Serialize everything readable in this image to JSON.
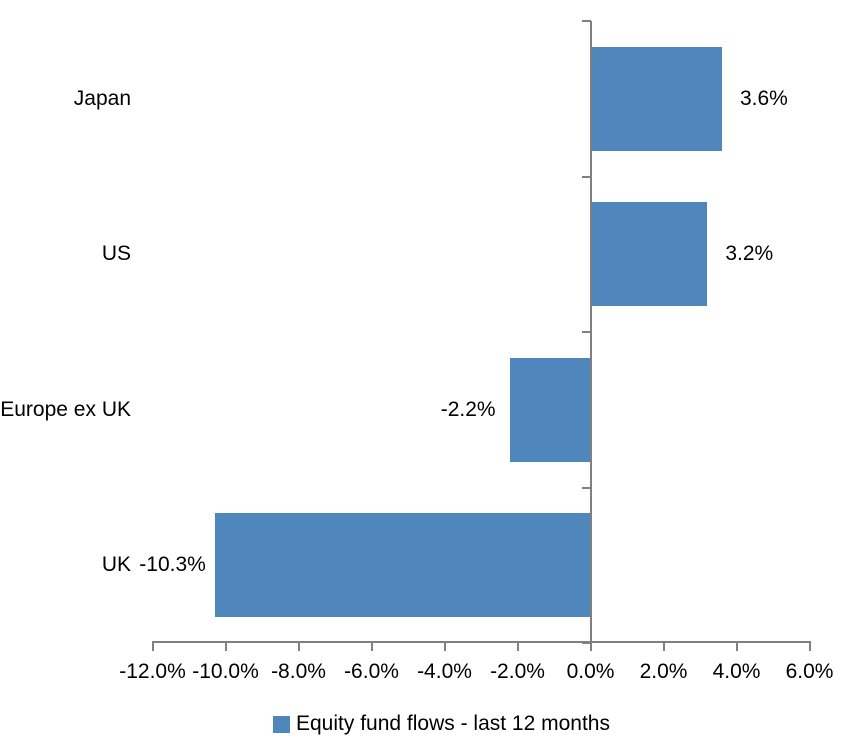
{
  "chart_data": {
    "type": "bar",
    "orientation": "horizontal",
    "title": "",
    "categories": [
      "Japan",
      "US",
      "Europe ex UK",
      "UK"
    ],
    "values": [
      3.6,
      3.2,
      -2.2,
      -10.3
    ],
    "data_labels": [
      "3.6%",
      "3.2%",
      "-2.2%",
      "-10.3%"
    ],
    "series_name": "Equity fund flows - last 12 months",
    "xlabel": "",
    "ylabel": "",
    "xlim": [
      -12,
      6
    ],
    "x_ticks": [
      -12,
      -10,
      -8,
      -6,
      -4,
      -2,
      0,
      2,
      4,
      6
    ],
    "x_tick_labels": [
      "-12.0%",
      "-10.0%",
      "-8.0%",
      "-6.0%",
      "-4.0%",
      "-2.0%",
      "0.0%",
      "2.0%",
      "4.0%",
      "6.0%"
    ],
    "grid": false,
    "legend_position": "bottom",
    "bar_color": "#4F86BB",
    "axis_color": "#808080",
    "text_color": "#000000",
    "background_color": "#FFFFFF"
  }
}
